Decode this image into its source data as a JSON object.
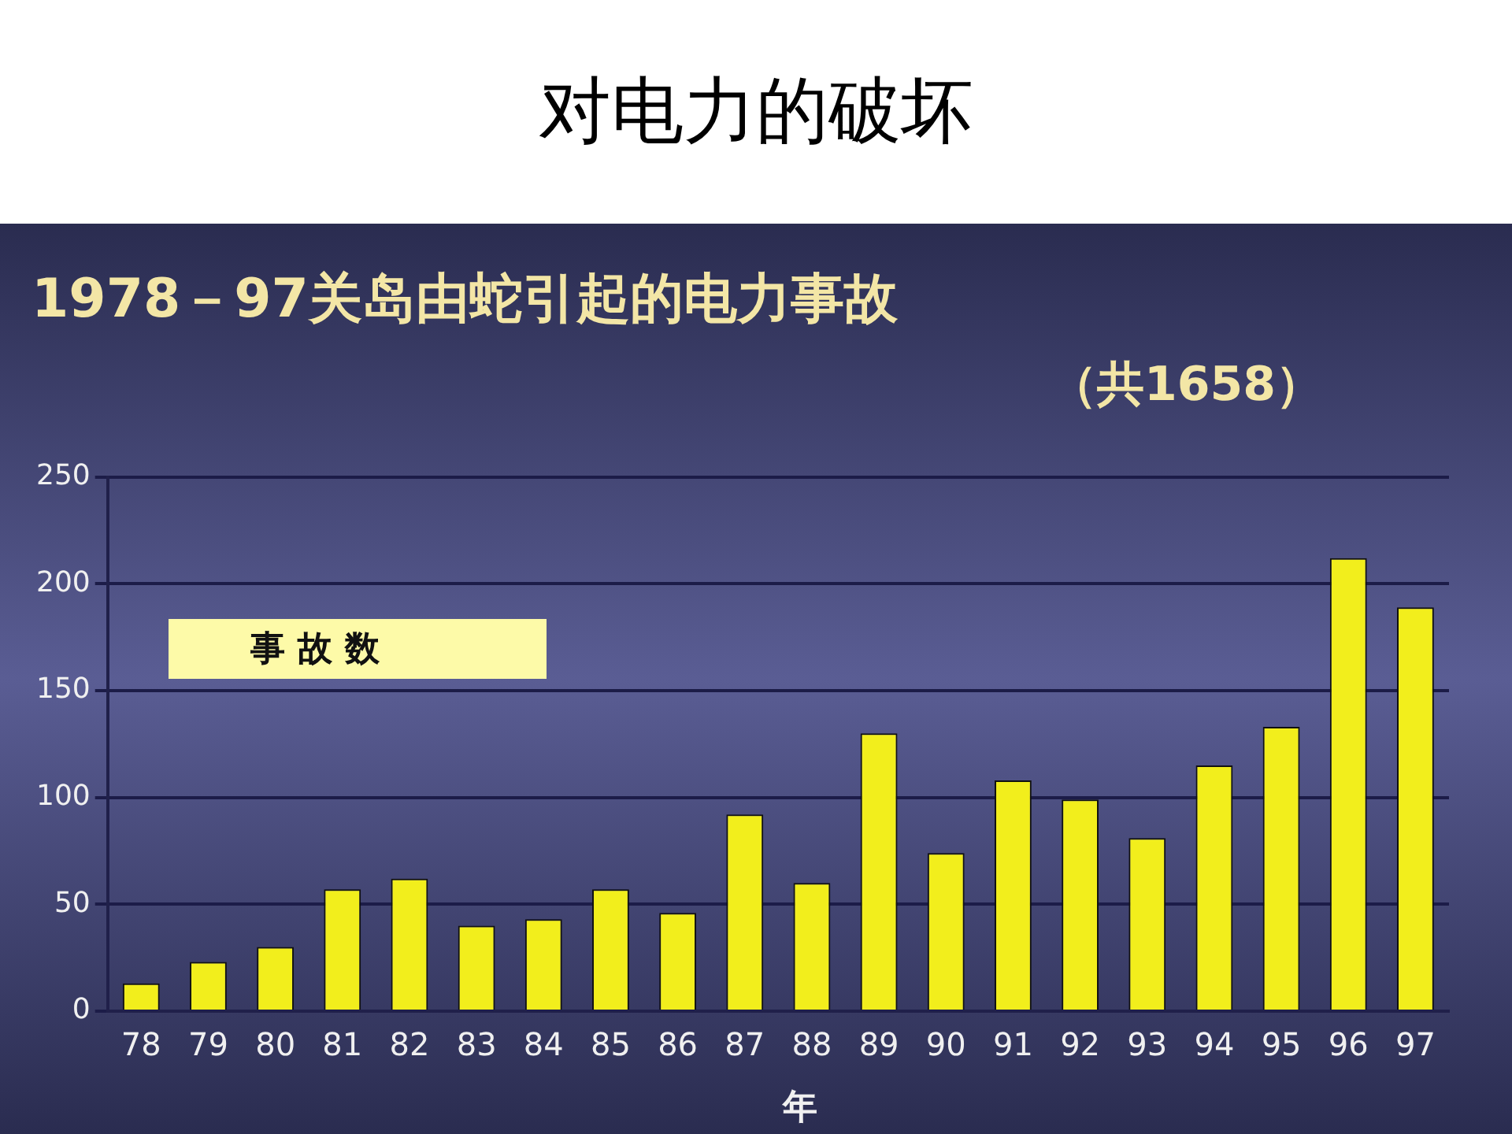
{
  "chart_data": {
    "type": "bar",
    "title": "对电力的破坏",
    "subtitle": "1978－97关岛由蛇引起的电力事故",
    "annotations": [
      "（共1658）"
    ],
    "xlabel": "年",
    "categories": [
      "78",
      "79",
      "80",
      "81",
      "82",
      "83",
      "84",
      "85",
      "86",
      "87",
      "88",
      "89",
      "90",
      "91",
      "92",
      "93",
      "94",
      "95",
      "96",
      "97"
    ],
    "series": [
      {
        "name": "事故数",
        "color": "#f2ee1c",
        "values": [
          13,
          23,
          30,
          57,
          62,
          40,
          43,
          57,
          46,
          92,
          60,
          130,
          74,
          108,
          99,
          81,
          115,
          133,
          212,
          189
        ]
      }
    ],
    "ylim": [
      0,
      250
    ],
    "yticks": [
      0,
      50,
      100,
      150,
      200,
      250
    ],
    "grid": "y",
    "legend": "top left"
  }
}
